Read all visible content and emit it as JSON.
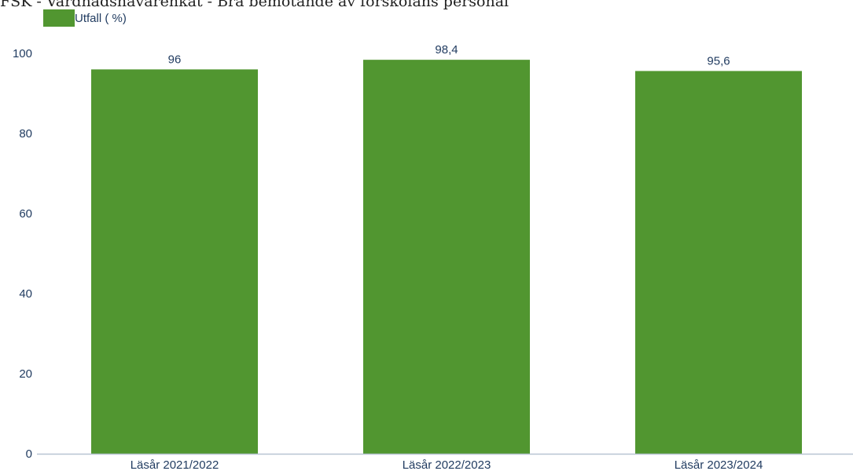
{
  "chart_data": {
    "type": "bar",
    "title": "FSK - Vårdnadshavarenkät - Bra bemötande av förskolans personal",
    "xlabel": "",
    "ylabel": "",
    "categories": [
      "Läsår 2021/2022",
      "Läsår 2022/2023",
      "Läsår 2023/2024"
    ],
    "series": [
      {
        "name": "Utfall ( %)",
        "values": [
          96,
          98.4,
          95.6
        ]
      }
    ],
    "data_labels": [
      "96",
      "98,4",
      "95,6"
    ],
    "ylim": [
      0,
      100
    ],
    "yticks": [
      "0",
      "20",
      "40",
      "60",
      "80",
      "100"
    ],
    "grid": false,
    "legend_position": "top-left",
    "colors": {
      "bar": "#519630",
      "axis": "#b8c4d2",
      "text": "#1f3a5f"
    }
  }
}
